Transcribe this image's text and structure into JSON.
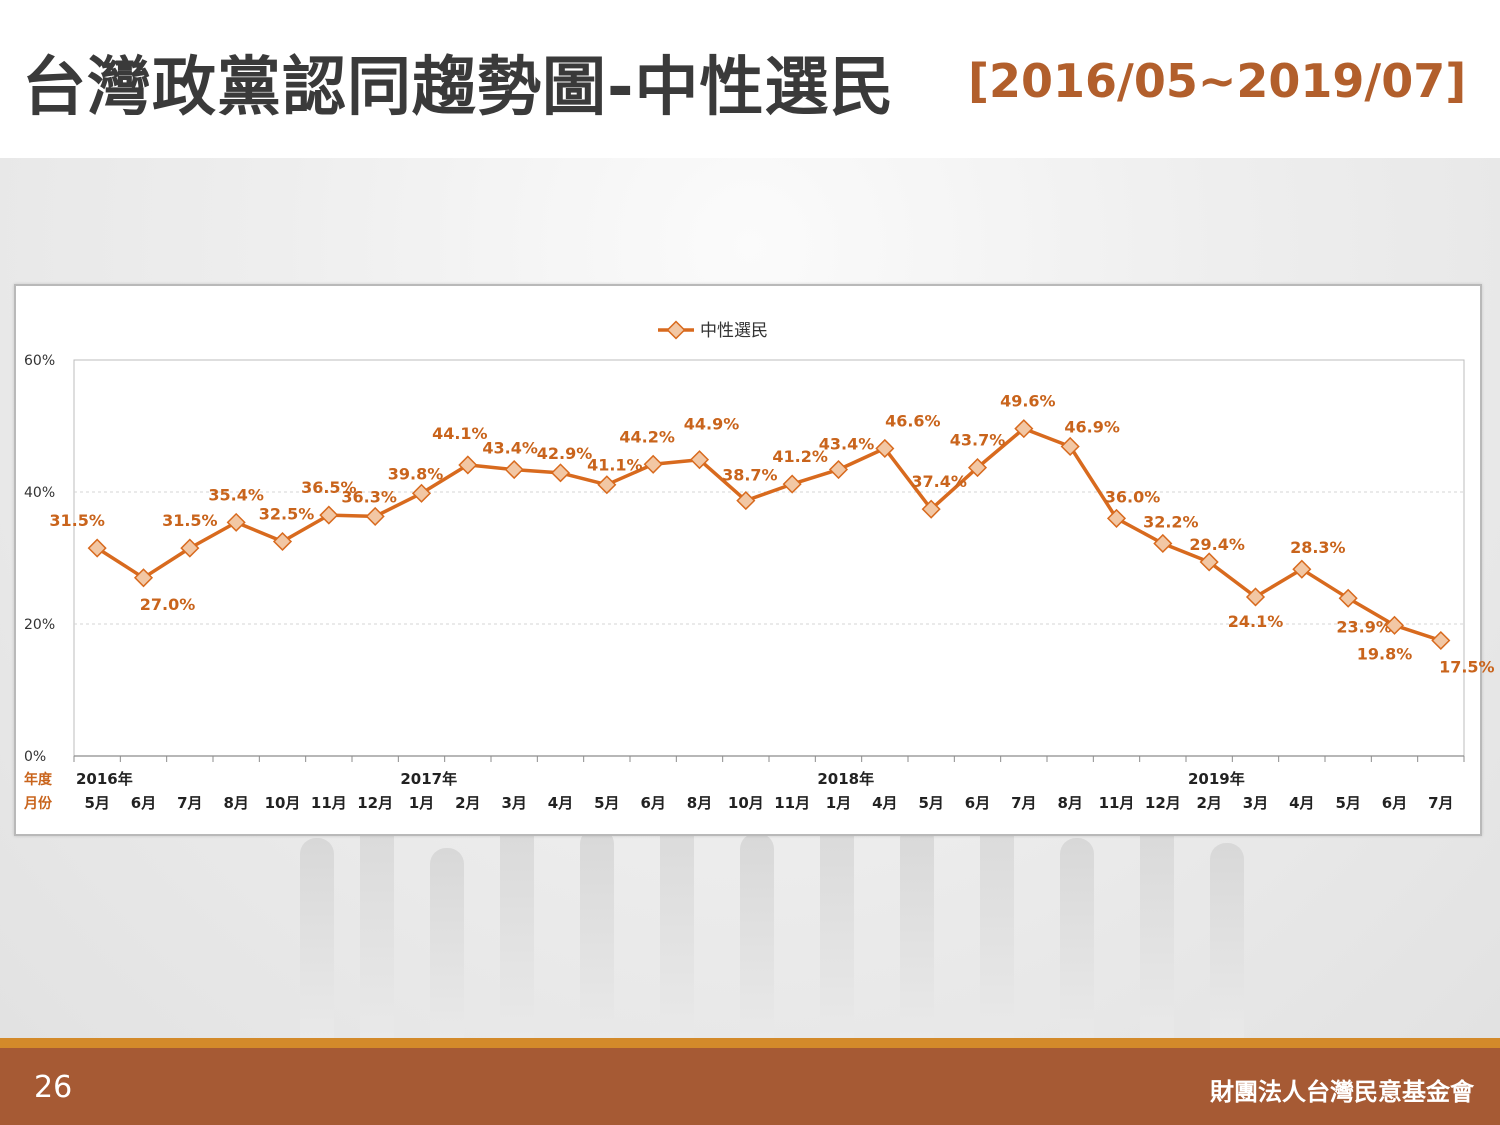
{
  "header": {
    "title": "台灣政黨認同趨勢圖-中性選民",
    "range": "[2016/05~2019/07]"
  },
  "footer": {
    "page_number": "26",
    "org_name": "財團法人台灣民意基金會"
  },
  "colors": {
    "series": "#d86a1e",
    "marker_fill": "#f2c7a4",
    "label": "#c9641c",
    "footer": "#a65a34",
    "footer_stripe": "#d38a2a",
    "title_range": "#b25f2c"
  },
  "chart_data": {
    "type": "line",
    "legend_position": "top-center",
    "grid": true,
    "ylim": [
      0,
      60
    ],
    "y_ticks": [
      "0%",
      "20%",
      "40%",
      "60%"
    ],
    "row_labels": {
      "year": "年度",
      "month": "月份"
    },
    "years": [
      {
        "label": "2016年",
        "start_index": 0
      },
      {
        "label": "2017年",
        "start_index": 7
      },
      {
        "label": "2018年",
        "start_index": 16
      },
      {
        "label": "2019年",
        "start_index": 24
      }
    ],
    "categories": [
      "5月",
      "6月",
      "7月",
      "8月",
      "10月",
      "11月",
      "12月",
      "1月",
      "2月",
      "3月",
      "4月",
      "5月",
      "6月",
      "8月",
      "10月",
      "11月",
      "1月",
      "4月",
      "5月",
      "6月",
      "7月",
      "8月",
      "11月",
      "12月",
      "2月",
      "3月",
      "4月",
      "5月",
      "6月",
      "7月"
    ],
    "series": [
      {
        "name": "中性選民",
        "values": [
          31.5,
          27.0,
          31.5,
          35.4,
          32.5,
          36.5,
          36.3,
          39.8,
          44.1,
          43.4,
          42.9,
          41.1,
          44.2,
          44.9,
          38.7,
          41.2,
          43.4,
          46.6,
          37.4,
          43.7,
          49.6,
          46.9,
          36.0,
          32.2,
          29.4,
          24.1,
          28.3,
          23.9,
          19.8,
          17.5
        ],
        "labels": [
          "31.5%",
          "27.0%",
          "31.5%",
          "35.4%",
          "32.5%",
          "36.5%",
          "36.3%",
          "39.8%",
          "44.1%",
          "43.4%",
          "42.9%",
          "41.1%",
          "44.2%",
          "44.9%",
          "38.7%",
          "41.2%",
          "43.4%",
          "46.6%",
          "37.4%",
          "43.7%",
          "49.6%",
          "46.9%",
          "36.0%",
          "32.2%",
          "29.4%",
          "24.1%",
          "28.3%",
          "23.9%",
          "19.8%",
          "17.5%"
        ]
      }
    ]
  }
}
